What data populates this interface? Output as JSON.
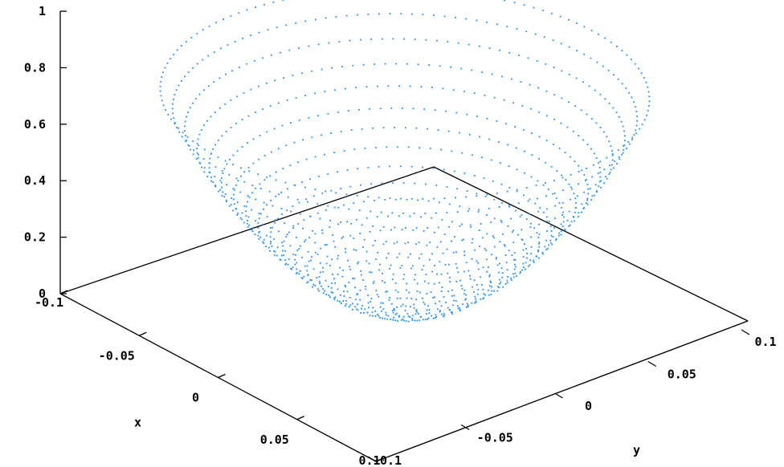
{
  "chart_data": {
    "type": "scatter",
    "plot_style": "3d-surface-points",
    "surface": "z = x^2 + y^2",
    "grid": false,
    "legend": "none",
    "xlabel": "x",
    "ylabel": "y",
    "zlabel": "",
    "xlim": [
      -0.1,
      0.1
    ],
    "ylim": [
      -0.1,
      0.1
    ],
    "zlim": [
      0,
      1
    ],
    "x_ticks": [
      "-0.1",
      "-0.05",
      "0",
      "0.05",
      "0.1"
    ],
    "y_ticks": [
      "-0.1",
      "-0.05",
      "0",
      "0.05",
      "0.1"
    ],
    "z_ticks": [
      "0",
      "0.2",
      "0.4",
      "0.6",
      "0.8",
      "1"
    ],
    "rings_radius": [
      0.005,
      0.01,
      0.015,
      0.02,
      0.025,
      0.03,
      0.035,
      0.04,
      0.045,
      0.05,
      0.055,
      0.06,
      0.065,
      0.07,
      0.075,
      0.08,
      0.085,
      0.09,
      0.095,
      0.1
    ],
    "rings_z": [
      0.01,
      0.02,
      0.03,
      0.05,
      0.07,
      0.09,
      0.12,
      0.15,
      0.18,
      0.22,
      0.26,
      0.3,
      0.35,
      0.4,
      0.45,
      0.51,
      0.57,
      0.64,
      0.71,
      0.78
    ],
    "color": "#1e90ff"
  }
}
